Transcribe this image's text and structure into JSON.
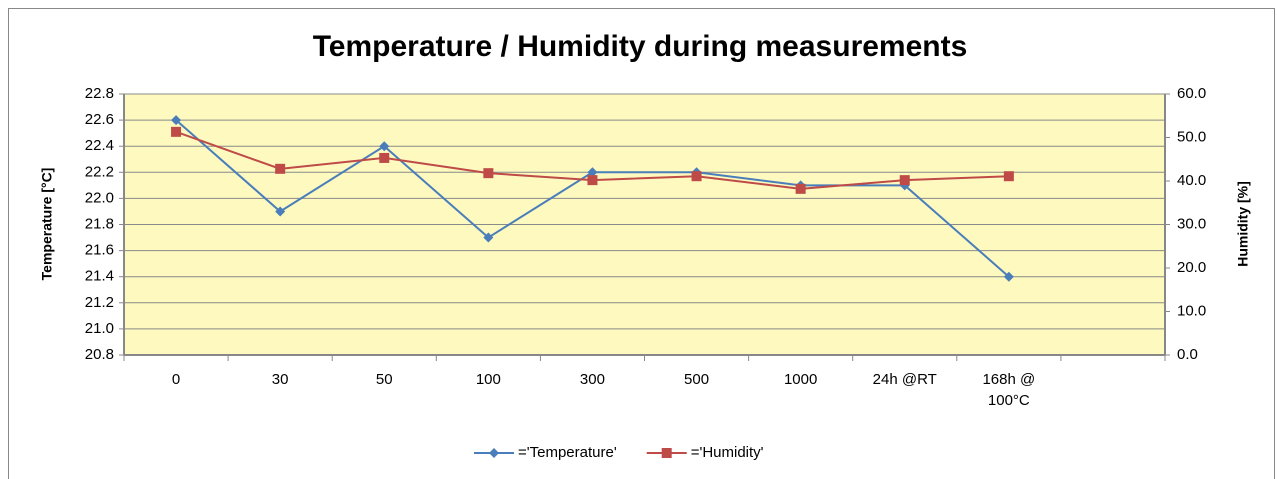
{
  "chart_data": {
    "type": "line",
    "title": "Temperature / Humidity during measurements",
    "y_label": "Temperature [°C]",
    "y2_label": "Humidity [%]",
    "categories": [
      "0",
      "30",
      "50",
      "100",
      "300",
      "500",
      "1000",
      "24h @RT",
      "168h @ 100°C",
      null
    ],
    "series": [
      {
        "name": "='Temperature'",
        "color": "#4a7ebb",
        "marker": "diamond",
        "values": [
          22.6,
          21.9,
          22.4,
          21.7,
          22.2,
          22.2,
          22.1,
          22.1,
          21.4,
          null
        ]
      },
      {
        "name": "='Humidity'",
        "color": "#be4b48",
        "marker": "square",
        "axis": "y2",
        "values": [
          51.3,
          42.8,
          45.3,
          41.8,
          40.2,
          41.1,
          38.2,
          40.2,
          41.1,
          null
        ]
      }
    ],
    "ylim": [
      20.8,
      22.8
    ],
    "yticks": [
      20.8,
      {
        "value": 21,
        "label": "21.0"
      },
      21.2,
      21.4,
      21.6,
      21.8,
      {
        "value": 22,
        "label": "22.0"
      },
      22.2,
      22.4,
      22.6,
      22.8
    ],
    "y2lim": [
      0,
      60
    ],
    "y2ticks": [
      {
        "value": 0,
        "label": "0.0"
      },
      {
        "value": 10,
        "label": "10.0"
      },
      {
        "value": 20,
        "label": "20.0"
      },
      {
        "value": 30,
        "label": "30.0"
      },
      {
        "value": 40,
        "label": "40.0"
      },
      {
        "value": 50,
        "label": "50.0"
      },
      {
        "value": 60,
        "label": "60.0"
      }
    ],
    "grid": true,
    "legend": "bottom"
  }
}
